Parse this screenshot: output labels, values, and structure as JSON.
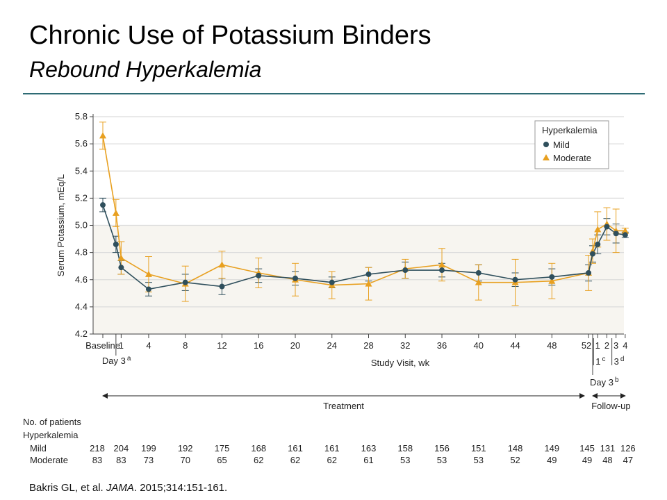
{
  "slide": {
    "title": "Chronic Use of Potassium Binders",
    "subtitle": "Rebound Hyperkalemia",
    "citation_author": "Bakris GL, et al. ",
    "citation_journal": "JAMA",
    "citation_rest": ". 2015;314:151-161."
  },
  "chart_data": {
    "type": "line",
    "ylabel": "Serum Potassium, mEq/L",
    "xlabel": "Study Visit, wk",
    "ylim": [
      4.2,
      5.8
    ],
    "yticks": [
      "4.2",
      "4.4",
      "4.6",
      "4.8",
      "5.0",
      "5.2",
      "5.4",
      "5.6",
      "5.8"
    ],
    "normal_range_shaded": [
      4.2,
      5.0
    ],
    "x_positions": [
      -1,
      0.43,
      1,
      4,
      8,
      12,
      16,
      20,
      24,
      28,
      32,
      36,
      40,
      44,
      48,
      52,
      52.45,
      53,
      54,
      55,
      56
    ],
    "x_tick_labels": [
      "Baseline",
      "",
      "1",
      "4",
      "8",
      "12",
      "16",
      "20",
      "24",
      "28",
      "32",
      "36",
      "40",
      "44",
      "48",
      "52",
      "",
      "1",
      "2",
      "3",
      "4"
    ],
    "x_annotations": [
      {
        "label": "Day 3",
        "sup": "a",
        "at": 0.43
      },
      {
        "label": "1",
        "sup": "c",
        "at": 53
      },
      {
        "label": "3",
        "sup": "d",
        "at": 55
      },
      {
        "label": "Day 3",
        "sup": "b",
        "at": 52.45
      }
    ],
    "phases": [
      {
        "label": "Treatment",
        "from": -1,
        "to": 52
      },
      {
        "label": "Follow-up",
        "from": 52.45,
        "to": 56
      }
    ],
    "legend": {
      "title": "Hyperkalemia",
      "position": "top-right"
    },
    "series": [
      {
        "name": "Mild",
        "marker": "circle",
        "color": "#2f4f5c",
        "values": [
          5.15,
          4.86,
          4.69,
          4.53,
          4.58,
          4.55,
          4.63,
          4.61,
          4.58,
          4.64,
          4.67,
          4.67,
          4.65,
          4.6,
          4.62,
          4.65,
          4.79,
          4.86,
          4.99,
          4.94,
          4.93
        ],
        "err": [
          0.05,
          0.06,
          0.05,
          0.05,
          0.06,
          0.06,
          0.05,
          0.05,
          0.04,
          0.05,
          0.06,
          0.05,
          0.06,
          0.05,
          0.06,
          0.06,
          0.06,
          0.07,
          0.06,
          0.07,
          0.02
        ]
      },
      {
        "name": "Moderate",
        "marker": "triangle",
        "color": "#e8a020",
        "values": [
          5.66,
          5.09,
          4.76,
          4.64,
          4.57,
          4.71,
          4.65,
          4.6,
          4.56,
          4.57,
          4.68,
          4.71,
          4.58,
          4.58,
          4.59,
          4.65,
          4.81,
          4.97,
          5.01,
          4.96,
          4.96
        ],
        "err": [
          0.1,
          0.1,
          0.12,
          0.13,
          0.13,
          0.1,
          0.11,
          0.12,
          0.1,
          0.12,
          0.07,
          0.12,
          0.13,
          0.17,
          0.13,
          0.13,
          0.09,
          0.13,
          0.12,
          0.16,
          0.02
        ]
      }
    ],
    "patients": {
      "header": "No. of patients",
      "group_header": "Hyperkalemia",
      "columns_at": [
        -1,
        1,
        4,
        8,
        12,
        16,
        20,
        24,
        28,
        32,
        36,
        40,
        44,
        48,
        52,
        54,
        56
      ],
      "rows": [
        {
          "label": "Mild",
          "values": [
            "218",
            "204",
            "199",
            "192",
            "175",
            "168",
            "161",
            "161",
            "163",
            "158",
            "156",
            "151",
            "148",
            "149",
            "145",
            "131",
            "126"
          ]
        },
        {
          "label": "Moderate",
          "values": [
            "83",
            "83",
            "73",
            "70",
            "65",
            "62",
            "62",
            "62",
            "61",
            "53",
            "53",
            "53",
            "52",
            "49",
            "49",
            "48",
            "47"
          ]
        }
      ]
    }
  }
}
